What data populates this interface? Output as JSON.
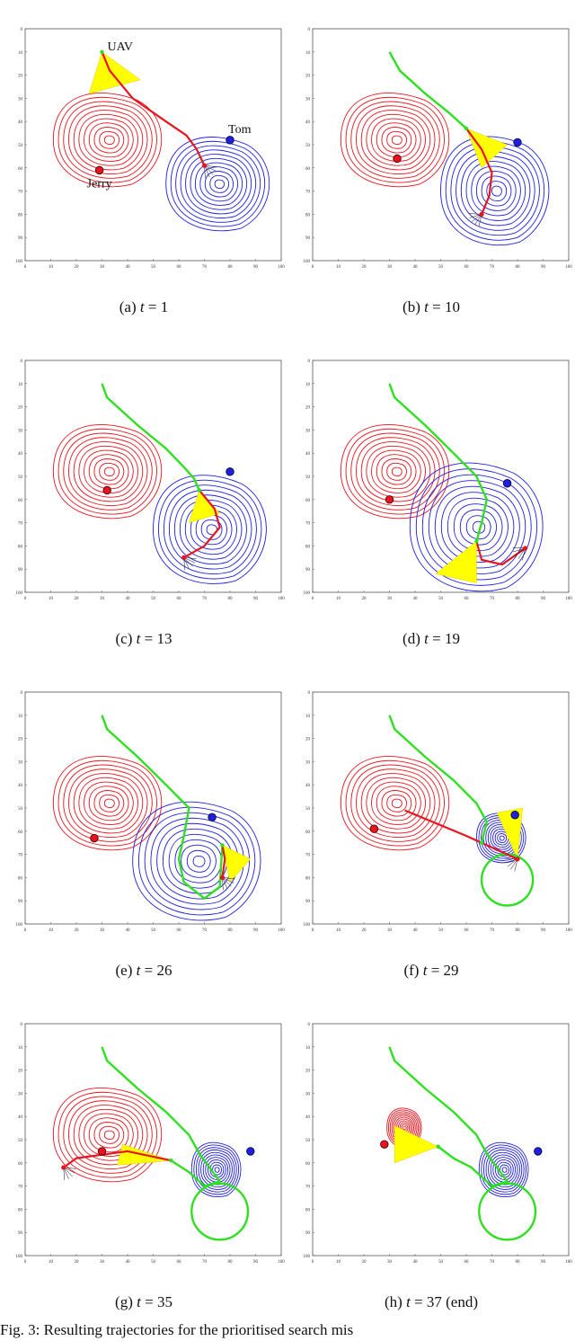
{
  "panels": [
    {
      "id": "a",
      "label": "(a)",
      "t": "1",
      "suffix": "",
      "uav": [
        30,
        10
      ],
      "jerry": [
        29,
        61
      ],
      "tom": [
        80,
        48
      ],
      "red": {
        "center": [
          33,
          48
        ],
        "size": [
          22,
          19
        ]
      },
      "blue": {
        "center": [
          76,
          67
        ],
        "size": [
          21,
          19
        ]
      },
      "green": [],
      "redpath": [
        [
          30,
          10
        ],
        [
          33,
          18
        ],
        [
          42,
          30
        ],
        [
          55,
          40
        ],
        [
          63,
          46
        ],
        [
          67,
          52
        ],
        [
          70,
          59
        ]
      ],
      "cone": [
        [
          30,
          10
        ],
        [
          25,
          28
        ],
        [
          45,
          22
        ]
      ],
      "labels": {
        "uav": "UAV",
        "jerry": "Jerry",
        "tom": "Tom"
      }
    },
    {
      "id": "b",
      "label": "(b)",
      "t": "10",
      "suffix": "",
      "uav": [
        60,
        43
      ],
      "jerry": [
        33,
        56
      ],
      "tom": [
        80,
        49
      ],
      "red": {
        "center": [
          33,
          48
        ],
        "size": [
          22,
          19
        ]
      },
      "blue": {
        "center": [
          72,
          70
        ],
        "size": [
          22,
          22
        ]
      },
      "green": [
        [
          30,
          10
        ],
        [
          34,
          18
        ],
        [
          44,
          28
        ],
        [
          53,
          36
        ],
        [
          60,
          43
        ]
      ],
      "redpath": [
        [
          60,
          43
        ],
        [
          66,
          52
        ],
        [
          70,
          62
        ],
        [
          69,
          72
        ],
        [
          66,
          80
        ]
      ],
      "cone": [
        [
          60,
          43
        ],
        [
          66,
          60
        ],
        [
          76,
          50
        ]
      ],
      "labels": {}
    },
    {
      "id": "c",
      "label": "(c)",
      "t": "13",
      "suffix": "",
      "uav": [
        68,
        56
      ],
      "jerry": [
        32,
        56
      ],
      "tom": [
        80,
        48
      ],
      "red": {
        "center": [
          33,
          48
        ],
        "size": [
          22,
          19
        ]
      },
      "blue": {
        "center": [
          73,
          73
        ],
        "size": [
          23,
          22
        ]
      },
      "green": [
        [
          30,
          10
        ],
        [
          32,
          16
        ],
        [
          44,
          28
        ],
        [
          55,
          38
        ],
        [
          62,
          46
        ],
        [
          66,
          51
        ],
        [
          68,
          56
        ]
      ],
      "redpath": [
        [
          68,
          56
        ],
        [
          74,
          64
        ],
        [
          76,
          72
        ],
        [
          70,
          80
        ],
        [
          62,
          85
        ]
      ],
      "cone": [
        [
          68,
          56
        ],
        [
          64,
          70
        ],
        [
          76,
          66
        ]
      ],
      "labels": {}
    },
    {
      "id": "d",
      "label": "(d)",
      "t": "19",
      "suffix": "",
      "uav": [
        64,
        78
      ],
      "jerry": [
        30,
        60
      ],
      "tom": [
        76,
        53
      ],
      "red": {
        "center": [
          33,
          48
        ],
        "size": [
          22,
          19
        ]
      },
      "blue": {
        "center": [
          65,
          72
        ],
        "size": [
          27,
          26
        ]
      },
      "green": [
        [
          30,
          10
        ],
        [
          32,
          16
        ],
        [
          44,
          28
        ],
        [
          55,
          40
        ],
        [
          64,
          50
        ],
        [
          68,
          60
        ],
        [
          66,
          70
        ],
        [
          64,
          78
        ]
      ],
      "redpath": [
        [
          64,
          78
        ],
        [
          66,
          86
        ],
        [
          74,
          88
        ],
        [
          83,
          81
        ]
      ],
      "cone": [
        [
          64,
          78
        ],
        [
          48,
          92
        ],
        [
          64,
          96
        ]
      ],
      "labels": {}
    },
    {
      "id": "e",
      "label": "(e)",
      "t": "26",
      "suffix": "",
      "uav": [
        77,
        66
      ],
      "jerry": [
        27,
        63
      ],
      "tom": [
        73,
        54
      ],
      "red": {
        "center": [
          33,
          48
        ],
        "size": [
          22,
          19
        ]
      },
      "blue": {
        "center": [
          68,
          73
        ],
        "size": [
          26,
          24
        ]
      },
      "green": [
        [
          30,
          10
        ],
        [
          32,
          16
        ],
        [
          44,
          28
        ],
        [
          55,
          40
        ],
        [
          64,
          50
        ],
        [
          62,
          62
        ],
        [
          60,
          72
        ],
        [
          62,
          82
        ],
        [
          70,
          89
        ],
        [
          76,
          84
        ],
        [
          77,
          66
        ]
      ],
      "redpath": [
        [
          77,
          66
        ],
        [
          78,
          72
        ],
        [
          77,
          80
        ]
      ],
      "cone": [
        [
          77,
          66
        ],
        [
          80,
          82
        ],
        [
          88,
          72
        ]
      ],
      "labels": {}
    },
    {
      "id": "f",
      "label": "(f)",
      "t": "29",
      "suffix": "",
      "uav": [
        66,
        65
      ],
      "jerry": [
        24,
        59
      ],
      "tom": [
        79,
        53
      ],
      "red": {
        "center": [
          33,
          48
        ],
        "size": [
          22,
          19
        ]
      },
      "blue": {
        "center": [
          74,
          63
        ],
        "size": [
          10,
          10
        ]
      },
      "green": [
        [
          30,
          10
        ],
        [
          32,
          16
        ],
        [
          44,
          28
        ],
        [
          55,
          38
        ],
        [
          64,
          48
        ],
        [
          68,
          56
        ],
        [
          66,
          65
        ]
      ],
      "redpath": [
        [
          36,
          51
        ],
        [
          60,
          62
        ],
        [
          80,
          72
        ]
      ],
      "cone": [
        [
          80,
          72
        ],
        [
          72,
          52
        ],
        [
          82,
          50
        ]
      ],
      "loop": {
        "center": [
          76,
          81
        ],
        "r": 10
      },
      "labels": {}
    },
    {
      "id": "g",
      "label": "(g)",
      "t": "35",
      "suffix": "",
      "uav": [
        57,
        59
      ],
      "jerry": [
        30,
        55
      ],
      "tom": [
        88,
        55
      ],
      "red": {
        "center": [
          33,
          48
        ],
        "size": [
          22,
          19
        ]
      },
      "blue": {
        "center": [
          75,
          63
        ],
        "size": [
          10,
          11
        ]
      },
      "green": [
        [
          30,
          10
        ],
        [
          32,
          16
        ],
        [
          44,
          28
        ],
        [
          55,
          38
        ],
        [
          64,
          48
        ],
        [
          68,
          56
        ],
        [
          72,
          62
        ],
        [
          76,
          68
        ],
        [
          70,
          70
        ],
        [
          64,
          64
        ],
        [
          57,
          59
        ]
      ],
      "redpath": [
        [
          57,
          59
        ],
        [
          40,
          55
        ],
        [
          20,
          58
        ],
        [
          15,
          62
        ]
      ],
      "cone": [
        [
          57,
          59
        ],
        [
          38,
          52
        ],
        [
          36,
          61
        ]
      ],
      "loop": {
        "center": [
          76,
          81
        ],
        "r": 11
      },
      "labels": {}
    },
    {
      "id": "h",
      "label": "(h)",
      "t": "37",
      "suffix": " (end)",
      "uav": [
        49,
        53
      ],
      "jerry": [
        28,
        52
      ],
      "tom": [
        88,
        55
      ],
      "red": {
        "center": [
          36,
          45
        ],
        "size": [
          7,
          8
        ]
      },
      "blue": {
        "center": [
          75,
          63
        ],
        "size": [
          10,
          11
        ]
      },
      "green": [
        [
          30,
          10
        ],
        [
          32,
          16
        ],
        [
          44,
          28
        ],
        [
          55,
          38
        ],
        [
          64,
          48
        ],
        [
          68,
          56
        ],
        [
          72,
          62
        ],
        [
          76,
          68
        ],
        [
          70,
          70
        ],
        [
          62,
          62
        ],
        [
          55,
          58
        ],
        [
          49,
          53
        ]
      ],
      "redpath": [],
      "cone": [
        [
          49,
          53
        ],
        [
          32,
          44
        ],
        [
          32,
          60
        ]
      ],
      "loop": {
        "center": [
          76,
          81
        ],
        "r": 11
      },
      "labels": {}
    }
  ],
  "axis": {
    "ticks": [
      0,
      10,
      20,
      30,
      40,
      50,
      60,
      70,
      80,
      90,
      100
    ]
  },
  "colors": {
    "red": "#e8141e",
    "blue": "#1f1fe0",
    "green": "#2fe020",
    "path": "#e8141e",
    "cone": "#ffff00"
  },
  "figure_caption": "Fig. 3: Resulting trajectories for the prioritised search mis"
}
